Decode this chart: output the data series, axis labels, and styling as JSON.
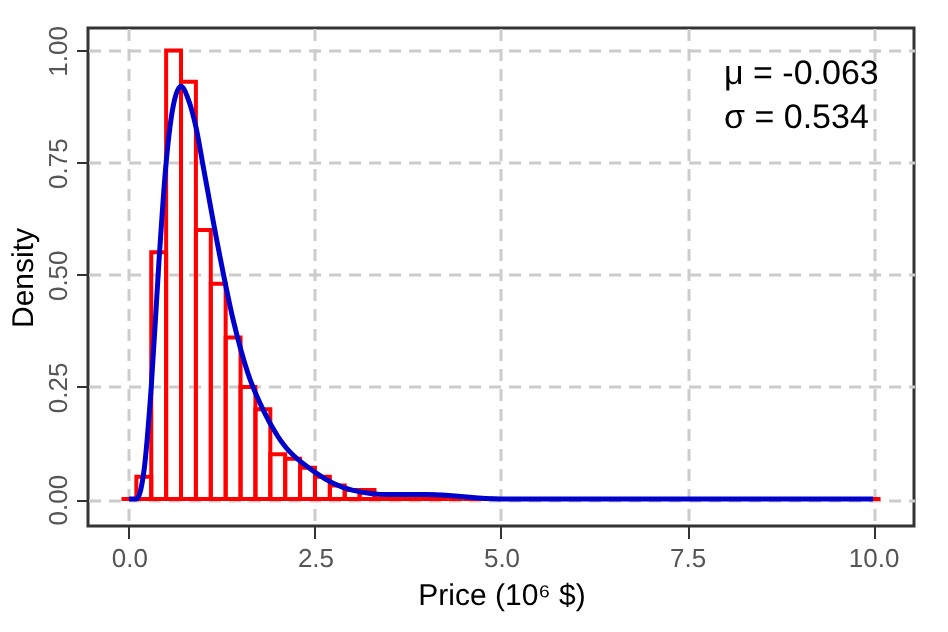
{
  "chart_data": {
    "type": "histogram",
    "xlabel": "Price (10⁶ $)",
    "ylabel": "Density",
    "annotations": [
      "μ = -0.063",
      "σ = 0.534"
    ],
    "bins": [
      -0.1,
      0.1,
      0.3,
      0.5,
      0.7,
      0.9,
      1.1,
      1.3,
      1.5,
      1.7,
      1.9,
      2.1,
      2.3,
      2.5,
      2.7,
      2.9,
      3.1,
      3.3,
      3.5,
      3.7,
      3.9,
      4.1,
      4.3,
      4.5,
      4.7,
      4.9,
      5.1,
      5.3,
      5.5,
      5.7,
      5.9,
      6.1,
      6.3,
      6.5,
      6.7,
      6.9,
      7.1,
      7.3,
      7.5,
      7.7,
      7.9,
      8.1,
      8.3,
      8.5,
      8.7,
      8.9,
      9.1,
      9.3,
      9.5,
      9.7,
      9.9,
      10.1
    ],
    "values": [
      0,
      0.05,
      0.55,
      1.0,
      0.93,
      0.6,
      0.48,
      0.36,
      0.25,
      0.2,
      0.1,
      0.09,
      0.07,
      0.05,
      0.03,
      0.02,
      0.02,
      0.01,
      0.01,
      0.01,
      0.01,
      0,
      0,
      0,
      0,
      0,
      0,
      0,
      0,
      0,
      0,
      0,
      0,
      0,
      0,
      0,
      0,
      0,
      0,
      0,
      0,
      0,
      0,
      0,
      0,
      0,
      0,
      0,
      0,
      0,
      0
    ],
    "color": "#ff0000",
    "series": [
      {
        "type": "line",
        "color": "#0000cc",
        "x": [
          0,
          0.1,
          0.2,
          0.3,
          0.4,
          0.5,
          0.6,
          0.7,
          0.8,
          0.9,
          1.0,
          1.2,
          1.4,
          1.6,
          1.8,
          2.0,
          2.5,
          3.0,
          3.5,
          4.0,
          5.0,
          6.0,
          8.0,
          10.0
        ],
        "values": [
          0,
          0,
          0.06,
          0.25,
          0.52,
          0.75,
          0.88,
          0.92,
          0.89,
          0.83,
          0.74,
          0.56,
          0.4,
          0.28,
          0.2,
          0.14,
          0.06,
          0.02,
          0.01,
          0.01,
          0,
          0,
          0,
          0
        ]
      }
    ],
    "xlim": [
      -0.55,
      10.55
    ],
    "xticks": [
      {
        "value": 0,
        "label": "0.0"
      },
      {
        "value": 2.5,
        "label": "2.5"
      },
      {
        "value": 5,
        "label": "5.0"
      },
      {
        "value": 7.5,
        "label": "7.5"
      },
      {
        "value": 10,
        "label": "10.0"
      }
    ],
    "ylim": [
      -0.06,
      1.05
    ],
    "yticks": [
      {
        "value": 0,
        "label": "0.00"
      },
      {
        "value": 0.25,
        "label": "0.25"
      },
      {
        "value": 0.5,
        "label": "0.50"
      },
      {
        "value": 0.75,
        "label": "0.75"
      },
      {
        "value": 1,
        "label": "1.00"
      }
    ],
    "grid": true
  }
}
